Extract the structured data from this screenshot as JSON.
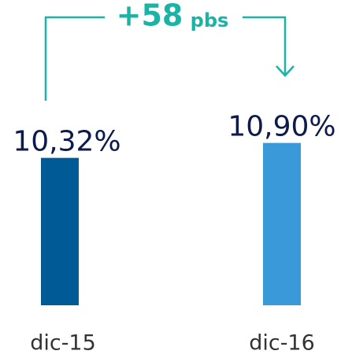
{
  "chart_data": {
    "type": "bar",
    "categories": [
      "dic-15",
      "dic-16"
    ],
    "values": [
      10.32,
      10.9
    ],
    "value_labels": [
      "10,32%",
      "10,90%"
    ],
    "colors": [
      "#005a96",
      "#3a9ad9"
    ],
    "ylim": [
      4.6,
      11.5
    ],
    "annotation": {
      "text": "+58",
      "suffix": "pbs",
      "color": "#1ab3a6"
    }
  }
}
